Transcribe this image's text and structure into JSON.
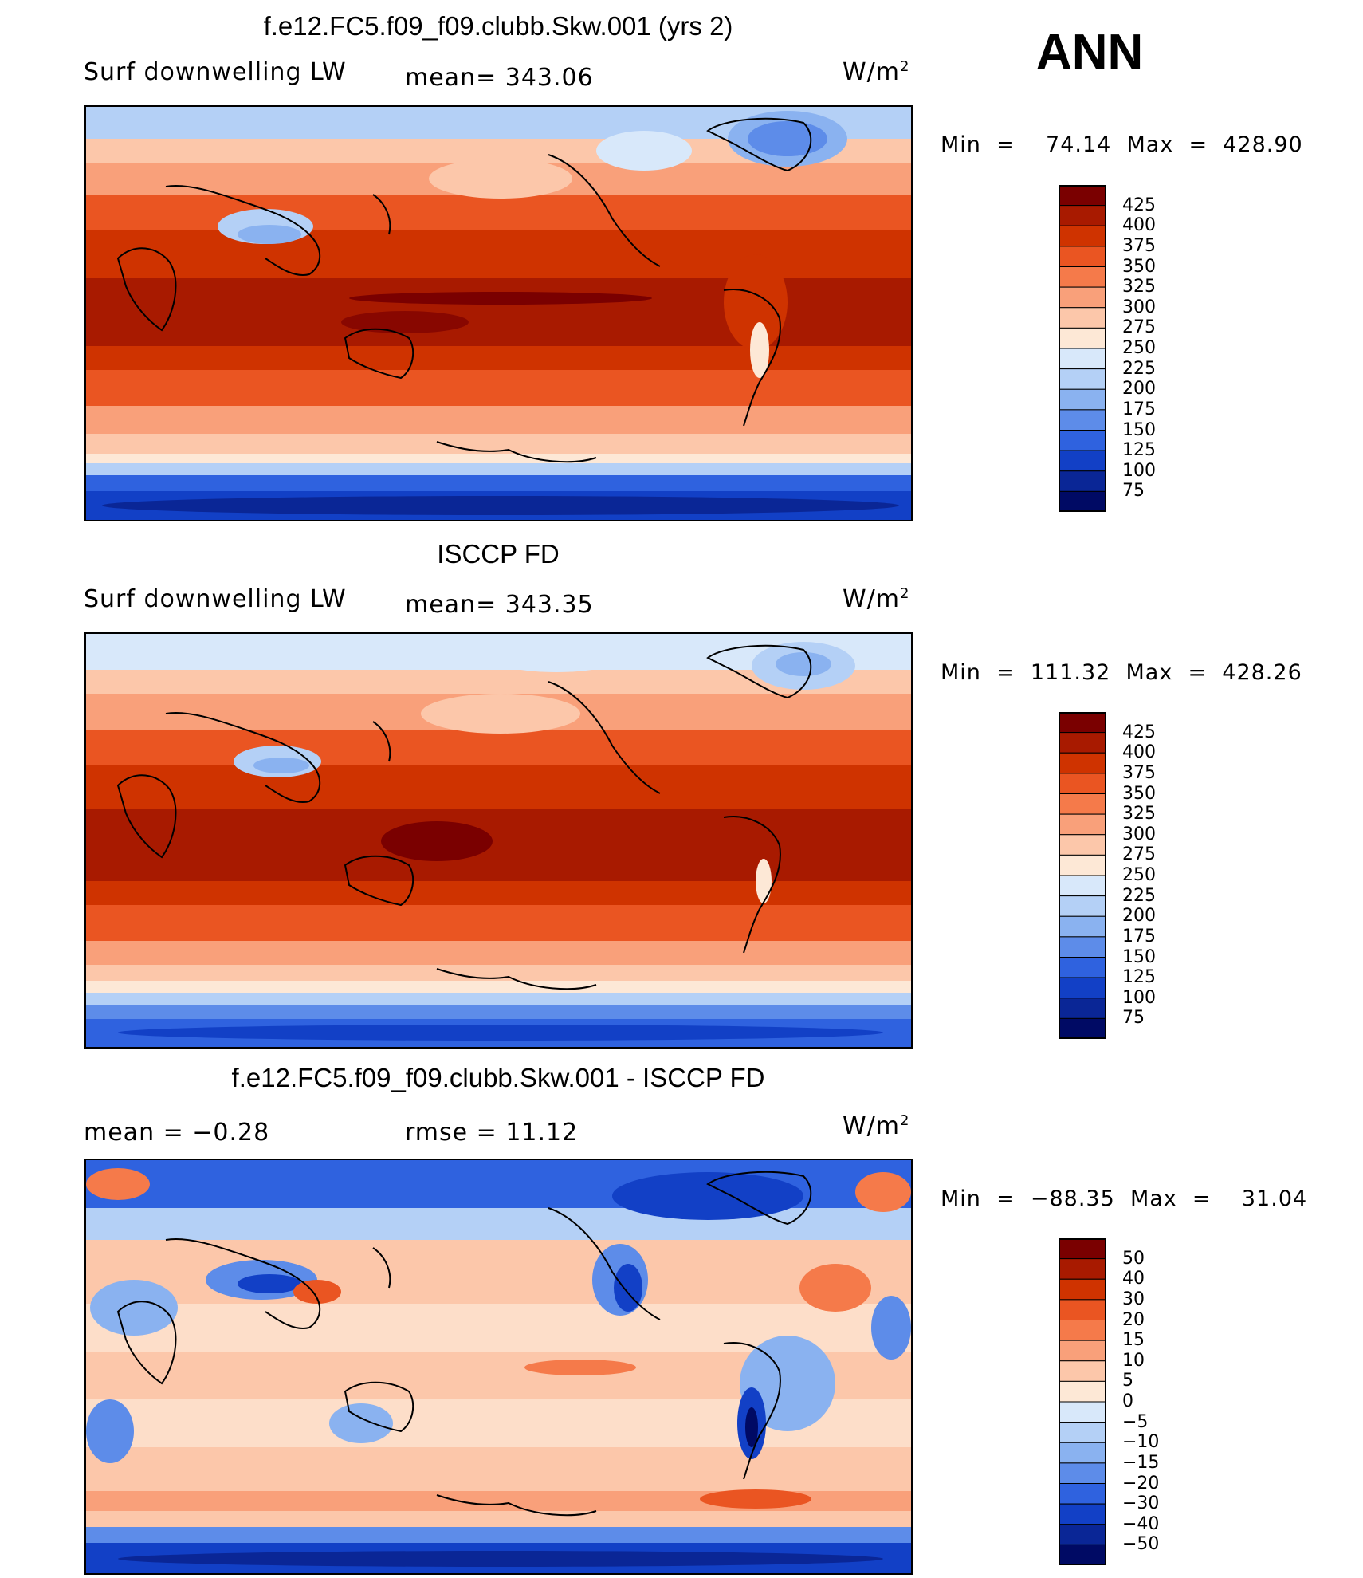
{
  "season": "ANN",
  "units_label": "W/m",
  "units_exp": "2",
  "panels": [
    {
      "title": "f.e12.FC5.f09_f09.clubb.Skw.001 (yrs 2)",
      "left_label": "Surf  downwelling  LW",
      "stat_label": "mean=  343.06",
      "minmax": "Min  =    74.14  Max  =  428.90",
      "colorbar": [
        "425",
        "400",
        "375",
        "350",
        "325",
        "300",
        "275",
        "250",
        "225",
        "200",
        "175",
        "150",
        "125",
        "100",
        "75"
      ],
      "kind": "field"
    },
    {
      "title": "ISCCP FD",
      "left_label": "Surf  downwelling  LW",
      "stat_label": "mean=  343.35",
      "minmax": "Min  =  111.32  Max  =  428.26",
      "colorbar": [
        "425",
        "400",
        "375",
        "350",
        "325",
        "300",
        "275",
        "250",
        "225",
        "200",
        "175",
        "150",
        "125",
        "100",
        "75"
      ],
      "kind": "field"
    },
    {
      "title": "f.e12.FC5.f09_f09.clubb.Skw.001 - ISCCP FD",
      "left_label": "mean  =    −0.28",
      "stat_label": "rmse  =    11.12",
      "minmax": "Min  =  −88.35  Max  =    31.04",
      "colorbar": [
        "50",
        "40",
        "30",
        "20",
        "15",
        "10",
        "5",
        "0",
        "−5",
        "−10",
        "−15",
        "−20",
        "−30",
        "−40",
        "−50"
      ],
      "kind": "diff"
    }
  ],
  "colors": {
    "field": [
      "#7a0000",
      "#a81a00",
      "#cf3300",
      "#ea5522",
      "#f57a4a",
      "#f9a07a",
      "#fcc7aa",
      "#fde8d6",
      "#d8e8fa",
      "#b4d0f6",
      "#8ab2f0",
      "#5d8ce9",
      "#2f62df",
      "#1240c6",
      "#0a2696",
      "#000a64"
    ],
    "diff": [
      "#7a0000",
      "#a81a00",
      "#cf3300",
      "#ea5522",
      "#f57a4a",
      "#f9a07a",
      "#fcc7aa",
      "#fde8d6",
      "#d8e8fa",
      "#b4d0f6",
      "#8ab2f0",
      "#5d8ce9",
      "#2f62df",
      "#1240c6",
      "#0a2696",
      "#000a64"
    ]
  }
}
